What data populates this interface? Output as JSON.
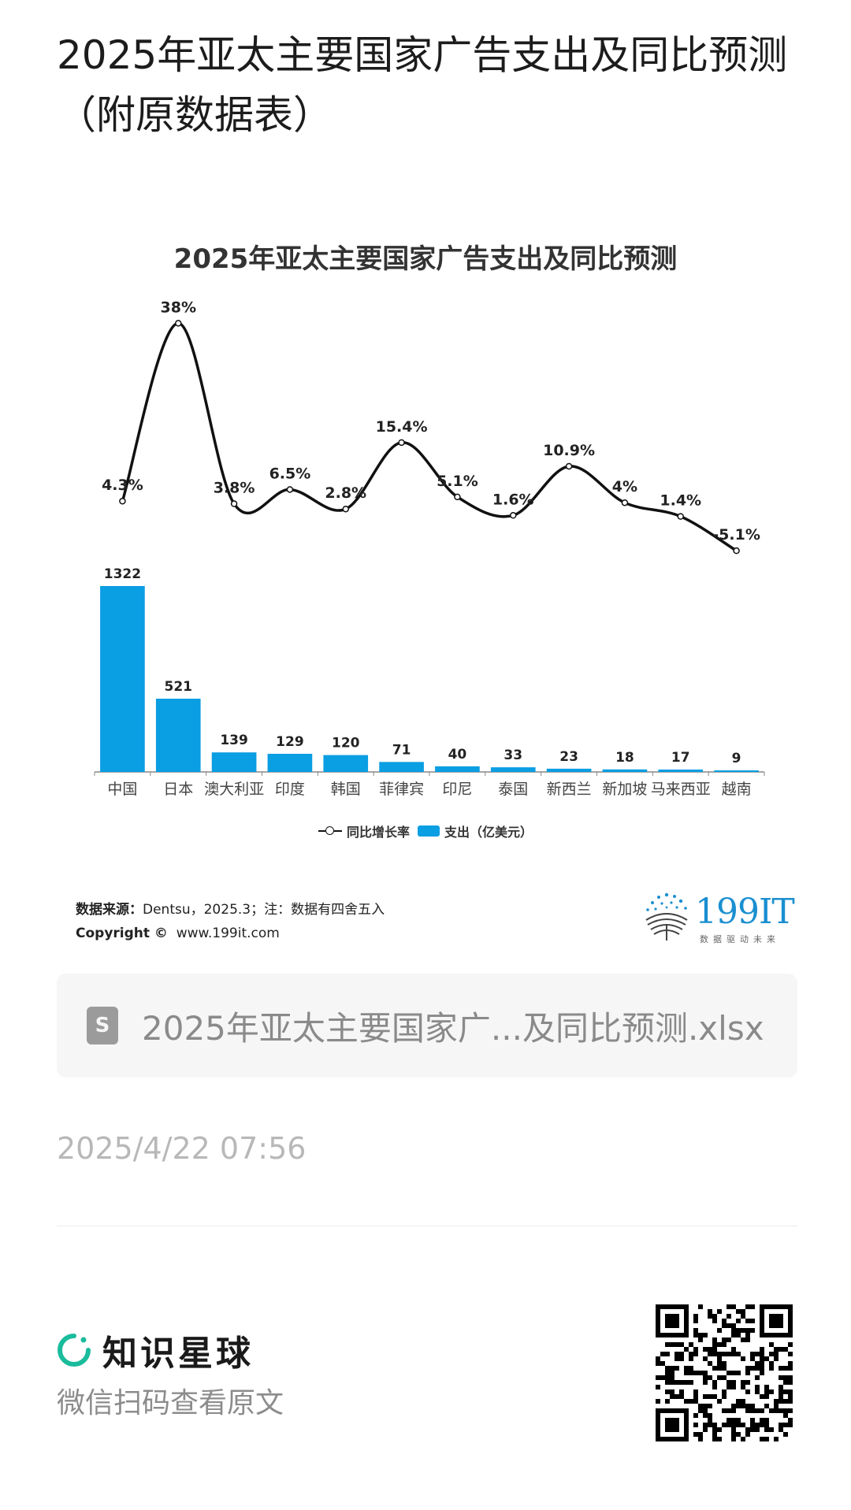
{
  "post": {
    "title": "2025年亚太主要国家广告支出及同比预测（附原数据表）"
  },
  "chart_data": {
    "type": "bar+line",
    "title": "2025年亚太主要国家广告支出及同比预测",
    "categories": [
      "中国",
      "日本",
      "澳大利亚",
      "印度",
      "韩国",
      "菲律宾",
      "印尼",
      "泰国",
      "新西兰",
      "新加坡",
      "马来西亚",
      "越南"
    ],
    "series": [
      {
        "name": "支出（亿美元）",
        "type": "bar",
        "values": [
          1322,
          521,
          139,
          129,
          120,
          71,
          40,
          33,
          23,
          18,
          17,
          9
        ]
      },
      {
        "name": "同比增长率",
        "type": "line",
        "values": [
          4.3,
          38,
          3.8,
          6.5,
          2.8,
          15.4,
          5.1,
          1.6,
          10.9,
          4,
          1.4,
          -5.1
        ],
        "labels": [
          "4.3%",
          "38%",
          "3.8%",
          "6.5%",
          "2.8%",
          "15.4%",
          "5.1%",
          "1.6%",
          "10.9%",
          "4%",
          "1.4%",
          "-5.1%"
        ]
      }
    ],
    "bar_color": "#0a9ee3",
    "line_color": "#111111",
    "legend": [
      "同比增长率",
      "支出（亿美元）"
    ],
    "legend_position": "bottom"
  },
  "source": {
    "label": "数据来源：",
    "text": "Dentsu，2025.3；注：数据有四舍五入",
    "copyright_label": "Copyright ©",
    "copyright_text": "www.199it.com"
  },
  "brand": {
    "logo_text": "199IT",
    "logo_sub": "数据驱动未来"
  },
  "file": {
    "name": "2025年亚太主要国家广...及同比预测.xlsx",
    "icon": "spreadsheet-icon"
  },
  "timestamp": "2025/4/22 07:56",
  "footer": {
    "planet_name": "知识星球",
    "scan_text": "微信扫码查看原文",
    "accent": "#1abc9c"
  }
}
